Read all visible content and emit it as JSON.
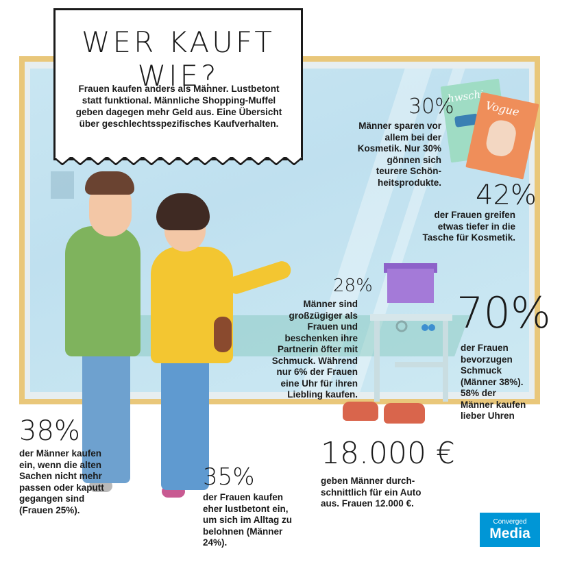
{
  "header": {
    "title": "WER KAUFT WIE?",
    "intro": "Frauen kaufen anders als Männer. Lustbetont statt funktional. Männliche Shopping-Muffel geben dagegen mehr Geld aus. Eine Übersicht über geschlechtsspezifisches Kaufverhalten."
  },
  "stats": {
    "s30": {
      "value": "30%",
      "text": "Männer sparen vor allem bei der Kosmetik. Nur 30% gönnen sich teurere Schön-heitsprodukte."
    },
    "s42": {
      "value": "42%",
      "text": "der Frauen greifen etwas tiefer in die Tasche für Kosmetik."
    },
    "s28": {
      "value": "28%",
      "text": "Männer sind großzügiger als Frauen und beschenken ihre Partnerin öfter mit Schmuck. Während nur 6% der Frauen eine Uhr für ihren Liebling kaufen."
    },
    "s70": {
      "value": "70%",
      "text": "der Frauen bevorzugen Schmuck (Männer 38%). 58% der Männer kaufen lieber Uhren"
    },
    "s38": {
      "value": "38%",
      "text": "der Männer kaufen ein, wenn die alten Sachen nicht mehr passen oder kaputt gegangen sind (Frauen 25%)."
    },
    "s35": {
      "value": "35%",
      "text": "der Frauen kaufen eher lustbetont ein, um sich im Alltag zu belohnen (Männer 24%)."
    },
    "s18000": {
      "value": "18.000 €",
      "text": "geben Männer durch-schnittlich für ein Auto aus. Frauen 12.000 €."
    }
  },
  "magazines": {
    "left_cover": "hwschi",
    "right_cover": "Vogue"
  },
  "logo": {
    "line1": "Converged",
    "line2": "Media"
  },
  "colors": {
    "frame": "#e9c77a",
    "glass": "#c9e6f2",
    "logo_bg": "#0096d6"
  }
}
